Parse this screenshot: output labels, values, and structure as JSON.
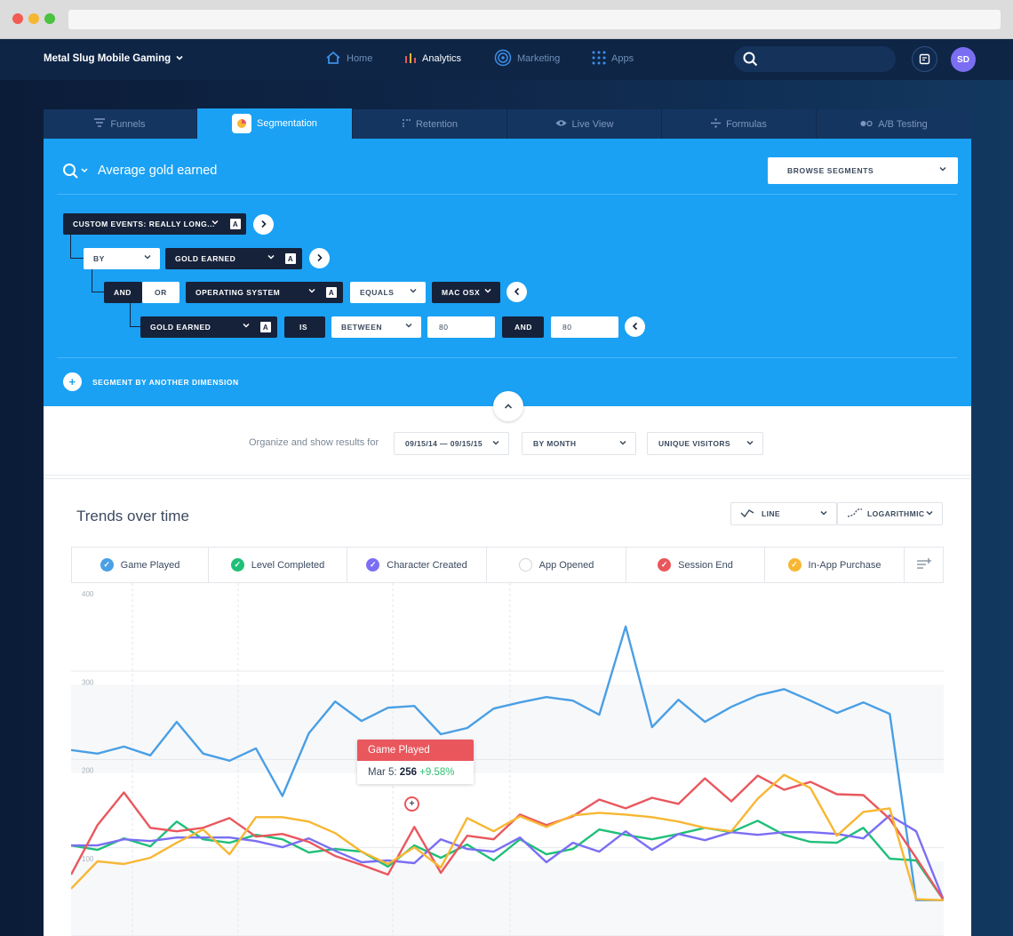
{
  "nav": {
    "org": "Metal Slug Mobile Gaming",
    "items": [
      {
        "label": "Home",
        "icon": "home-icon"
      },
      {
        "label": "Analytics",
        "icon": "bar-chart-icon"
      },
      {
        "label": "Marketing",
        "icon": "target-icon"
      },
      {
        "label": "Apps",
        "icon": "grid-icon"
      }
    ],
    "avatar": "SD"
  },
  "tabs": [
    {
      "label": "Funnels"
    },
    {
      "label": "Segmentation"
    },
    {
      "label": "Retention"
    },
    {
      "label": "Live View"
    },
    {
      "label": "Formulas"
    },
    {
      "label": "A/B Testing"
    }
  ],
  "query": {
    "title": "Average gold earned",
    "browse": "BROWSE SEGMENTS",
    "event": "CUSTOM EVENTS: REALLY LONG...",
    "by": "BY",
    "by_value": "GOLD EARNED",
    "and": "AND",
    "or": "OR",
    "os_field": "OPERATING SYSTEM",
    "equals": "EQUALS",
    "os_value": "MAC OSX",
    "gold_field": "GOLD EARNED",
    "is": "IS",
    "between": "BETWEEN",
    "from_value": "80",
    "and2": "AND",
    "to_value": "80",
    "a_badge": "A",
    "add_dimension": "SEGMENT BY ANOTHER DIMENSION"
  },
  "results": {
    "organize_label": "Organize and show results for",
    "date_range": "09/15/14 — 09/15/15",
    "grouping": "BY MONTH",
    "metric": "UNIQUE VISITORS",
    "section_title": "Trends over time",
    "chart_type": "LINE",
    "scale": "LOGARITHMIC"
  },
  "legend": [
    {
      "label": "Game Played",
      "color": "#4a9fe5",
      "checked": true
    },
    {
      "label": "Level Completed",
      "color": "#1fbf78",
      "checked": true
    },
    {
      "label": "Character Created",
      "color": "#7b6ef3",
      "checked": true
    },
    {
      "label": "App Opened",
      "color": "#cfd5dc",
      "checked": false
    },
    {
      "label": "Session End",
      "color": "#e9575d",
      "checked": true
    },
    {
      "label": "In-App Purchase",
      "color": "#f7b733",
      "checked": true
    }
  ],
  "tooltip": {
    "title": "Game Played",
    "date": "Mar 5:",
    "value": "256",
    "change": "+9.58%"
  },
  "chart_data": {
    "type": "line",
    "yticks": [
      400,
      300,
      200,
      100
    ],
    "ylim": [
      50,
      420
    ],
    "grid": true,
    "legend_position": "top",
    "series": [
      {
        "name": "Game Played",
        "color": "#4a9fe5",
        "values": [
          226,
          222,
          230,
          220,
          258,
          222,
          214,
          228,
          174,
          245,
          281,
          259,
          274,
          276,
          244,
          251,
          273,
          280,
          286,
          282,
          266,
          366,
          252,
          283,
          258,
          275,
          288,
          295,
          282,
          268,
          280,
          267,
          56,
          56
        ]
      },
      {
        "name": "Level Completed",
        "color": "#1fbf78",
        "values": [
          118,
          113,
          126,
          117,
          145,
          125,
          121,
          130,
          125,
          110,
          114,
          111,
          94,
          118,
          104,
          119,
          101,
          125,
          108,
          114,
          136,
          130,
          125,
          131,
          138,
          133,
          146,
          130,
          122,
          121,
          138,
          103,
          101,
          56
        ]
      },
      {
        "name": "Character Created",
        "color": "#7b6ef3",
        "values": [
          118,
          118,
          125,
          123,
          127,
          127,
          127,
          123,
          116,
          126,
          112,
          99,
          101,
          98,
          125,
          114,
          111,
          127,
          99,
          121,
          111,
          134,
          113,
          131,
          124,
          133,
          130,
          133,
          133,
          131,
          126,
          152,
          134,
          56
        ]
      },
      {
        "name": "Session End",
        "color": "#e9575d",
        "values": [
          85,
          141,
          178,
          138,
          134,
          138,
          149,
          128,
          131,
          122,
          106,
          96,
          85,
          139,
          87,
          129,
          125,
          153,
          141,
          151,
          170,
          160,
          172,
          165,
          194,
          168,
          197,
          181,
          190,
          176,
          175,
          148,
          104,
          56
        ]
      },
      {
        "name": "In-App Purchase",
        "color": "#f7b733",
        "values": [
          69,
          100,
          97,
          104,
          121,
          136,
          108,
          150,
          150,
          145,
          132,
          111,
          97,
          116,
          93,
          149,
          134,
          151,
          139,
          152,
          155,
          153,
          150,
          145,
          138,
          134,
          171,
          198,
          183,
          129,
          156,
          160,
          57,
          56
        ]
      }
    ]
  }
}
